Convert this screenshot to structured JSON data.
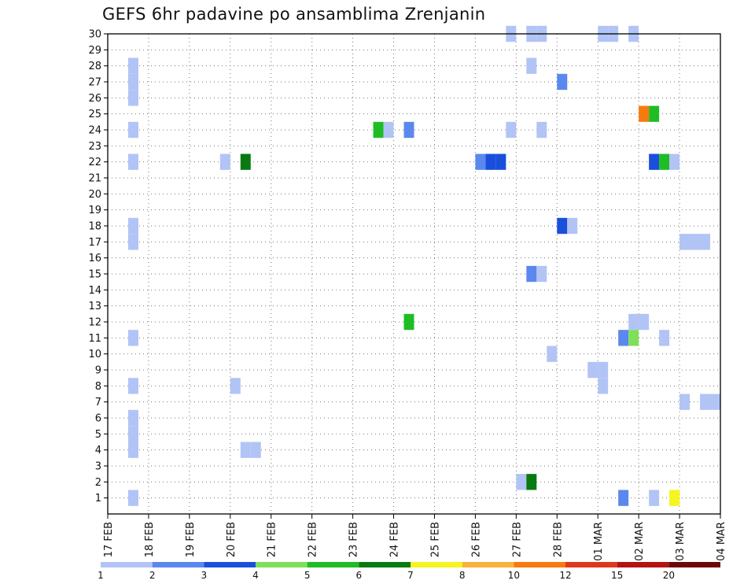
{
  "chart_data": {
    "type": "heatmap",
    "title": "GEFS 6hr padavine po ansamblima Zrenjanin",
    "xlabel": "",
    "ylabel": "",
    "x_ticks": [
      "17 FEB",
      "18 FEB",
      "19 FEB",
      "20 FEB",
      "21 FEB",
      "22 FEB",
      "23 FEB",
      "24 FEB",
      "25 FEB",
      "26 FEB",
      "27 FEB",
      "28 FEB",
      "01 MAR",
      "02 MAR",
      "03 MAR",
      "04 MAR"
    ],
    "x_range_days": [
      0,
      15
    ],
    "y_ticks": [
      1,
      2,
      3,
      4,
      5,
      6,
      7,
      8,
      9,
      10,
      11,
      12,
      13,
      14,
      15,
      16,
      17,
      18,
      19,
      20,
      21,
      22,
      23,
      24,
      25,
      26,
      27,
      28,
      29,
      30
    ],
    "y_range": [
      0,
      30
    ],
    "grid": true,
    "colorbar": {
      "colors": [
        "#b2c4f5",
        "#5b88ee",
        "#1a4fdc",
        "#7ee05a",
        "#1fbd24",
        "#087a10",
        "#f5f51f",
        "#fbb23c",
        "#f77a0e",
        "#e0371a",
        "#b31313",
        "#6e0808"
      ],
      "labels": [
        "1",
        "2",
        "3",
        "4",
        "5",
        "6",
        "7",
        "8",
        "10",
        "12",
        "15",
        "20"
      ]
    },
    "cells_note": "each cell: member (y), start time in days after 17 FEB 00Z, 6-hour step, value = precipitation mm",
    "cells": [
      {
        "member": 30,
        "t": 9.75,
        "value": 1
      },
      {
        "member": 30,
        "t": 10.25,
        "value": 1
      },
      {
        "member": 30,
        "t": 10.5,
        "value": 1
      },
      {
        "member": 30,
        "t": 12.0,
        "value": 1
      },
      {
        "member": 30,
        "t": 12.25,
        "value": 1
      },
      {
        "member": 30,
        "t": 12.75,
        "value": 1
      },
      {
        "member": 28,
        "t": 0.5,
        "value": 1
      },
      {
        "member": 27,
        "t": 0.5,
        "value": 1
      },
      {
        "member": 26,
        "t": 0.5,
        "value": 1
      },
      {
        "member": 28,
        "t": 10.25,
        "value": 1
      },
      {
        "member": 27,
        "t": 11.0,
        "value": 2
      },
      {
        "member": 25,
        "t": 13.0,
        "value": 10
      },
      {
        "member": 25,
        "t": 13.25,
        "value": 5
      },
      {
        "member": 24,
        "t": 0.5,
        "value": 1
      },
      {
        "member": 24,
        "t": 6.5,
        "value": 5
      },
      {
        "member": 24,
        "t": 6.75,
        "value": 1
      },
      {
        "member": 24,
        "t": 7.25,
        "value": 2
      },
      {
        "member": 24,
        "t": 9.75,
        "value": 1
      },
      {
        "member": 24,
        "t": 10.5,
        "value": 1
      },
      {
        "member": 22,
        "t": 0.5,
        "value": 1
      },
      {
        "member": 22,
        "t": 2.75,
        "value": 1
      },
      {
        "member": 22,
        "t": 3.25,
        "value": 6
      },
      {
        "member": 22,
        "t": 9.0,
        "value": 2
      },
      {
        "member": 22,
        "t": 9.25,
        "value": 3
      },
      {
        "member": 22,
        "t": 9.5,
        "value": 3
      },
      {
        "member": 22,
        "t": 13.25,
        "value": 3
      },
      {
        "member": 22,
        "t": 13.5,
        "value": 5
      },
      {
        "member": 22,
        "t": 13.75,
        "value": 1
      },
      {
        "member": 18,
        "t": 0.5,
        "value": 1
      },
      {
        "member": 17,
        "t": 0.5,
        "value": 1
      },
      {
        "member": 18,
        "t": 11.0,
        "value": 3
      },
      {
        "member": 18,
        "t": 11.25,
        "value": 1
      },
      {
        "member": 17,
        "t": 14.0,
        "value": 1
      },
      {
        "member": 17,
        "t": 14.25,
        "value": 1
      },
      {
        "member": 17,
        "t": 14.5,
        "value": 1
      },
      {
        "member": 15,
        "t": 10.25,
        "value": 2
      },
      {
        "member": 15,
        "t": 10.5,
        "value": 1
      },
      {
        "member": 12,
        "t": 7.25,
        "value": 5
      },
      {
        "member": 12,
        "t": 12.75,
        "value": 1
      },
      {
        "member": 12,
        "t": 13.0,
        "value": 1
      },
      {
        "member": 11,
        "t": 0.5,
        "value": 1
      },
      {
        "member": 11,
        "t": 12.5,
        "value": 2
      },
      {
        "member": 11,
        "t": 12.75,
        "value": 4
      },
      {
        "member": 11,
        "t": 13.5,
        "value": 1
      },
      {
        "member": 10,
        "t": 10.75,
        "value": 1
      },
      {
        "member": 9,
        "t": 11.75,
        "value": 1
      },
      {
        "member": 9,
        "t": 12.0,
        "value": 1
      },
      {
        "member": 8,
        "t": 0.5,
        "value": 1
      },
      {
        "member": 8,
        "t": 3.0,
        "value": 1
      },
      {
        "member": 8,
        "t": 12.0,
        "value": 1
      },
      {
        "member": 7,
        "t": 14.0,
        "value": 1
      },
      {
        "member": 7,
        "t": 14.5,
        "value": 1
      },
      {
        "member": 7,
        "t": 14.75,
        "value": 1
      },
      {
        "member": 6,
        "t": 0.5,
        "value": 1
      },
      {
        "member": 5,
        "t": 0.5,
        "value": 1
      },
      {
        "member": 4,
        "t": 0.5,
        "value": 1
      },
      {
        "member": 4,
        "t": 3.25,
        "value": 1
      },
      {
        "member": 4,
        "t": 3.5,
        "value": 1
      },
      {
        "member": 2,
        "t": 10.0,
        "value": 1
      },
      {
        "member": 2,
        "t": 10.25,
        "value": 6
      },
      {
        "member": 1,
        "t": 0.5,
        "value": 1
      },
      {
        "member": 1,
        "t": 12.5,
        "value": 2
      },
      {
        "member": 1,
        "t": 13.25,
        "value": 1
      },
      {
        "member": 1,
        "t": 13.75,
        "value": 7
      }
    ]
  }
}
